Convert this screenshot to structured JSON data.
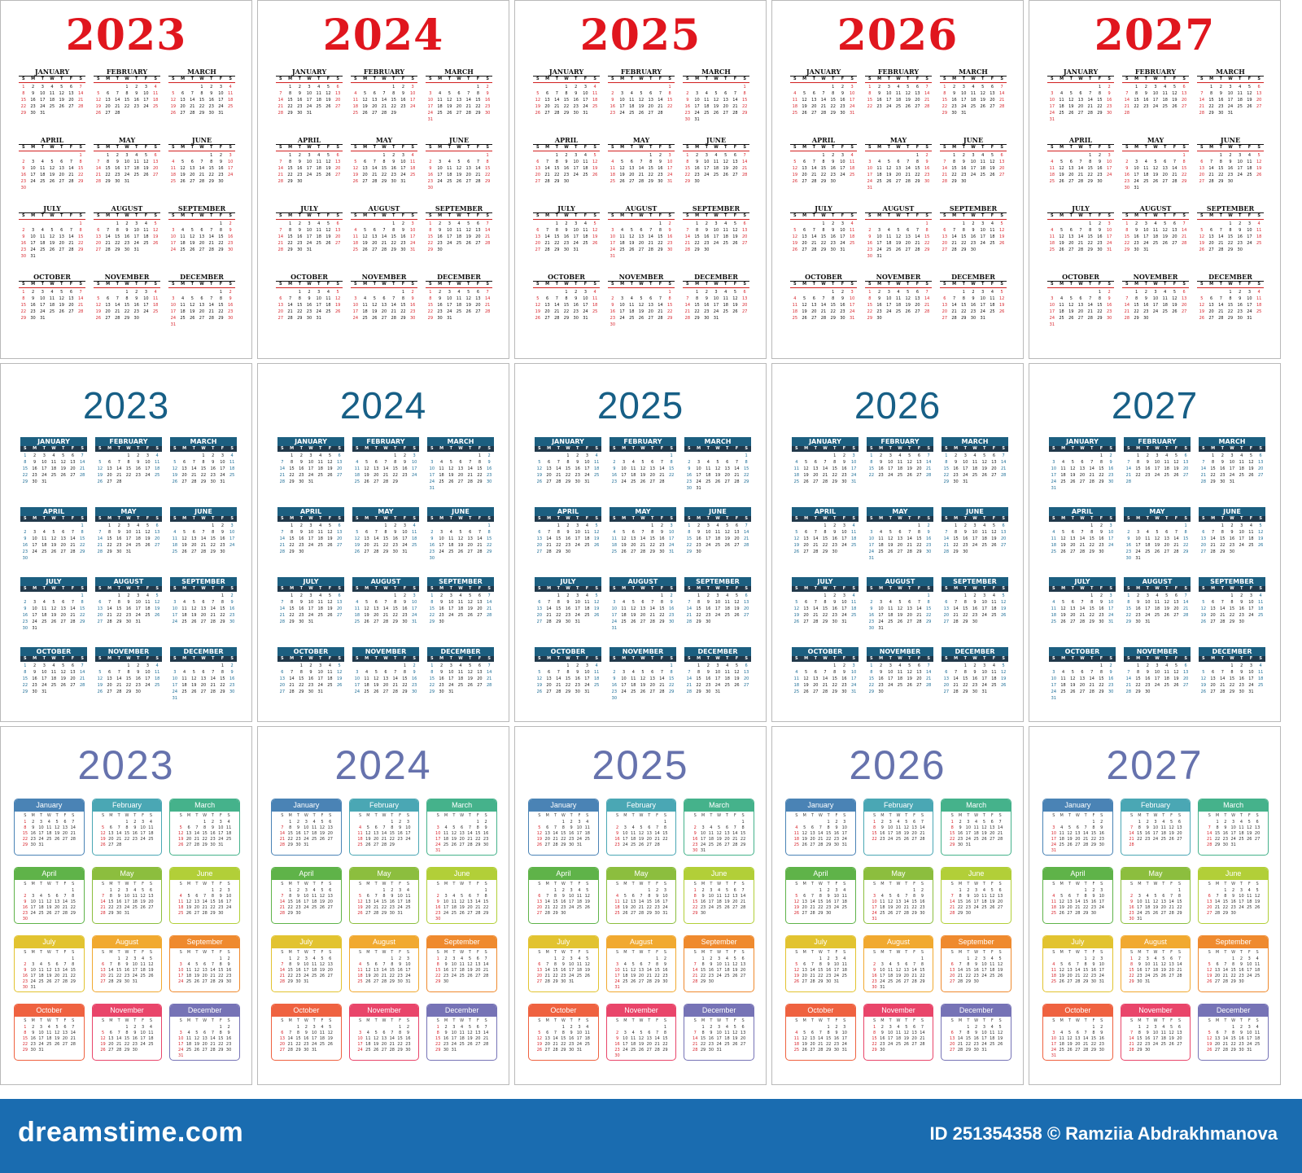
{
  "colors": {
    "classic_year": "#e0161e",
    "modern_year": "#175f86",
    "color_year": "#6672ad",
    "footer_bg": "#1a6cb0",
    "month_palette": [
      "#4a83b5",
      "#4aa7b4",
      "#45b28b",
      "#5fb349",
      "#8cbe3e",
      "#b2cf38",
      "#e2c330",
      "#f1a930",
      "#ef8a2e",
      "#ef6240",
      "#e9456a",
      "#7673b6"
    ]
  },
  "weekday_letters": [
    "S",
    "M",
    "T",
    "W",
    "T",
    "F",
    "S"
  ],
  "styles": [
    {
      "id": "classic",
      "month_labels": [
        "JANUARY",
        "FEBRUARY",
        "MARCH",
        "APRIL",
        "MAY",
        "JUNE",
        "JULY",
        "AUGUST",
        "SEPTEMBER",
        "OCTOBER",
        "NOVEMBER",
        "DECEMBER"
      ]
    },
    {
      "id": "modern",
      "month_labels": [
        "JANUARY",
        "FEBRUARY",
        "MARCH",
        "APRIL",
        "MAY",
        "JUNE",
        "JULY",
        "AUGUST",
        "SEPTEMBER",
        "OCTOBER",
        "NOVEMBER",
        "DECEMBER"
      ]
    },
    {
      "id": "color",
      "month_labels": [
        "January",
        "February",
        "March",
        "April",
        "May",
        "June",
        "July",
        "August",
        "September",
        "October",
        "November",
        "December"
      ]
    }
  ],
  "years": [
    "2023",
    "2024",
    "2025",
    "2026",
    "2027"
  ],
  "footer": {
    "brand": "dreamstime.com",
    "credit": "ID 251354358 © Ramziia Abdrakhmanova"
  }
}
